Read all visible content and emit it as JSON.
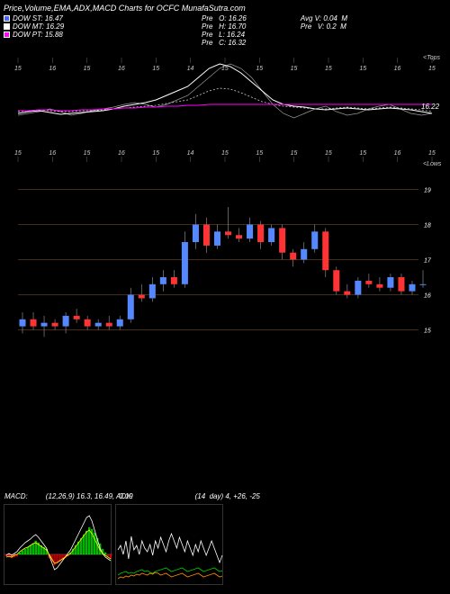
{
  "title": "Price,Volume,EMA,ADX,MACD Charts for OCFC MunafaSutra.com",
  "stats": {
    "dow_st": {
      "label": "DOW ST: 16.47",
      "color": "#4466ff"
    },
    "dow_mt": {
      "label": "DOW MT: 16.29",
      "color": "#ffffff"
    },
    "dow_pt": {
      "label": "DOW PT: 15.88",
      "color": "#ff00ff"
    }
  },
  "mid_block": [
    "Pre   O: 16.26",
    "Pre   H: 16.70",
    "Pre   L: 16.24",
    "Pre   C: 16.32"
  ],
  "right_block": [
    "Avg V: 0.04  M",
    "Pre   V: 0.2  M"
  ],
  "ema_chart": {
    "x_ticks": [
      15,
      16,
      15,
      16,
      15,
      14,
      15,
      15,
      15,
      15,
      15,
      16,
      15
    ],
    "top_right": "<Tops",
    "bot_right": "<Lows",
    "price_tag": "16.22",
    "colors": {
      "line1": "#ffffff",
      "line2": "#cccccc",
      "line3": "#ff00ff",
      "line4": "#999999"
    },
    "line1": [
      70,
      68,
      67,
      69,
      71,
      70,
      69,
      68,
      67,
      65,
      62,
      60,
      58,
      55,
      50,
      45,
      40,
      30,
      20,
      15,
      18,
      25,
      35,
      45,
      55,
      60,
      62,
      63,
      65,
      66,
      65,
      64,
      65,
      66,
      65,
      64,
      65,
      66,
      68,
      70
    ],
    "line2": [
      68,
      67,
      66,
      67,
      68,
      68,
      67,
      67,
      66,
      65,
      64,
      63,
      62,
      61,
      59,
      57,
      55,
      50,
      45,
      42,
      43,
      47,
      52,
      57,
      60,
      62,
      63,
      64,
      65,
      65,
      64,
      63,
      64,
      65,
      64,
      63,
      64,
      65,
      66,
      68
    ],
    "line3": [
      67,
      67,
      66,
      66,
      67,
      67,
      66,
      66,
      65,
      65,
      64,
      64,
      63,
      63,
      62,
      62,
      61,
      61,
      60,
      60,
      60,
      60,
      60,
      60,
      60,
      60,
      60,
      60,
      60,
      60,
      60,
      60,
      60,
      60,
      60,
      60,
      60,
      60,
      60,
      60
    ],
    "line4": [
      72,
      70,
      68,
      65,
      68,
      72,
      70,
      67,
      65,
      63,
      60,
      58,
      60,
      63,
      60,
      55,
      50,
      40,
      30,
      20,
      15,
      20,
      30,
      45,
      60,
      70,
      75,
      70,
      65,
      62,
      68,
      72,
      70,
      65,
      62,
      60,
      65,
      70,
      72,
      70
    ]
  },
  "candle_chart": {
    "y_ticks": [
      19,
      18,
      17,
      16,
      15
    ],
    "y_min": 14.5,
    "y_max": 19.5,
    "candles": [
      {
        "o": 15.1,
        "h": 15.5,
        "l": 14.9,
        "c": 15.3,
        "up": true
      },
      {
        "o": 15.3,
        "h": 15.5,
        "l": 15.0,
        "c": 15.1,
        "up": false
      },
      {
        "o": 15.1,
        "h": 15.4,
        "l": 14.8,
        "c": 15.2,
        "up": true
      },
      {
        "o": 15.2,
        "h": 15.3,
        "l": 15.0,
        "c": 15.1,
        "up": false
      },
      {
        "o": 15.1,
        "h": 15.5,
        "l": 14.9,
        "c": 15.4,
        "up": true
      },
      {
        "o": 15.4,
        "h": 15.6,
        "l": 15.2,
        "c": 15.3,
        "up": false
      },
      {
        "o": 15.3,
        "h": 15.4,
        "l": 15.0,
        "c": 15.1,
        "up": false
      },
      {
        "o": 15.1,
        "h": 15.3,
        "l": 15.0,
        "c": 15.2,
        "up": true
      },
      {
        "o": 15.2,
        "h": 15.4,
        "l": 15.0,
        "c": 15.1,
        "up": false
      },
      {
        "o": 15.1,
        "h": 15.4,
        "l": 15.0,
        "c": 15.3,
        "up": true
      },
      {
        "o": 15.3,
        "h": 16.2,
        "l": 15.2,
        "c": 16.0,
        "up": true
      },
      {
        "o": 16.0,
        "h": 16.3,
        "l": 15.8,
        "c": 15.9,
        "up": false
      },
      {
        "o": 15.9,
        "h": 16.5,
        "l": 15.8,
        "c": 16.3,
        "up": true
      },
      {
        "o": 16.3,
        "h": 16.7,
        "l": 16.1,
        "c": 16.5,
        "up": true
      },
      {
        "o": 16.5,
        "h": 16.7,
        "l": 16.2,
        "c": 16.3,
        "up": false
      },
      {
        "o": 16.3,
        "h": 17.8,
        "l": 16.2,
        "c": 17.5,
        "up": true
      },
      {
        "o": 17.5,
        "h": 18.3,
        "l": 17.3,
        "c": 18.0,
        "up": true
      },
      {
        "o": 18.0,
        "h": 18.2,
        "l": 17.2,
        "c": 17.4,
        "up": false
      },
      {
        "o": 17.4,
        "h": 18.0,
        "l": 17.3,
        "c": 17.8,
        "up": true
      },
      {
        "o": 17.8,
        "h": 18.5,
        "l": 17.6,
        "c": 17.7,
        "up": false
      },
      {
        "o": 17.7,
        "h": 17.9,
        "l": 17.5,
        "c": 17.6,
        "up": false
      },
      {
        "o": 17.6,
        "h": 18.2,
        "l": 17.5,
        "c": 18.0,
        "up": true
      },
      {
        "o": 18.0,
        "h": 18.1,
        "l": 17.3,
        "c": 17.5,
        "up": false
      },
      {
        "o": 17.5,
        "h": 18.0,
        "l": 17.4,
        "c": 17.9,
        "up": true
      },
      {
        "o": 17.9,
        "h": 18.0,
        "l": 17.0,
        "c": 17.2,
        "up": false
      },
      {
        "o": 17.2,
        "h": 17.3,
        "l": 16.8,
        "c": 17.0,
        "up": false
      },
      {
        "o": 17.0,
        "h": 17.5,
        "l": 16.9,
        "c": 17.3,
        "up": true
      },
      {
        "o": 17.3,
        "h": 18.0,
        "l": 17.2,
        "c": 17.8,
        "up": true
      },
      {
        "o": 17.8,
        "h": 17.9,
        "l": 16.5,
        "c": 16.7,
        "up": false
      },
      {
        "o": 16.7,
        "h": 16.8,
        "l": 16.0,
        "c": 16.1,
        "up": false
      },
      {
        "o": 16.1,
        "h": 16.3,
        "l": 15.9,
        "c": 16.0,
        "up": false
      },
      {
        "o": 16.0,
        "h": 16.5,
        "l": 15.9,
        "c": 16.4,
        "up": true
      },
      {
        "o": 16.4,
        "h": 16.6,
        "l": 16.2,
        "c": 16.3,
        "up": false
      },
      {
        "o": 16.3,
        "h": 16.5,
        "l": 16.1,
        "c": 16.2,
        "up": false
      },
      {
        "o": 16.2,
        "h": 16.6,
        "l": 16.1,
        "c": 16.5,
        "up": true
      },
      {
        "o": 16.5,
        "h": 16.6,
        "l": 16.0,
        "c": 16.1,
        "up": false
      },
      {
        "o": 16.1,
        "h": 16.4,
        "l": 16.0,
        "c": 16.3,
        "up": true
      },
      {
        "o": 16.3,
        "h": 16.7,
        "l": 16.2,
        "c": 16.3,
        "up": true
      }
    ],
    "colors": {
      "up": "#5588ff",
      "down": "#ff3333",
      "wick": "#888888"
    }
  },
  "macd": {
    "label": "MACD:         (12,26,9) 16.3, 16.49, -0.19",
    "hist": [
      -2,
      -3,
      -4,
      -3,
      -2,
      2,
      4,
      6,
      8,
      10,
      12,
      15,
      13,
      10,
      8,
      6,
      -4,
      -8,
      -12,
      -10,
      -8,
      -6,
      -4,
      -2,
      2,
      6,
      10,
      14,
      18,
      22,
      26,
      30,
      28,
      24,
      18,
      12,
      6,
      2,
      -2,
      -4
    ],
    "signal": [
      58,
      57,
      58,
      56,
      55,
      52,
      50,
      48,
      47,
      45,
      43,
      42,
      44,
      46,
      48,
      50,
      55,
      60,
      65,
      64,
      62,
      60,
      58,
      56,
      54,
      50,
      46,
      42,
      38,
      34,
      30,
      28,
      32,
      38,
      44,
      50,
      54,
      56,
      58,
      60
    ],
    "macd_line": [
      56,
      54,
      56,
      54,
      52,
      48,
      45,
      42,
      40,
      38,
      35,
      33,
      36,
      40,
      44,
      48,
      56,
      64,
      72,
      70,
      66,
      62,
      58,
      54,
      50,
      44,
      38,
      32,
      26,
      20,
      14,
      12,
      18,
      28,
      38,
      48,
      54,
      58,
      60,
      62
    ],
    "colors": {
      "hist_pos": "#00ff00",
      "hist_neg": "#ff0000",
      "signal": "#ffff00",
      "macd": "#ffffff",
      "mid": "#888888"
    }
  },
  "adx": {
    "label": "ADX:                               (14  day) 4, +26, -25",
    "adx_line": [
      50,
      45,
      55,
      40,
      60,
      35,
      50,
      45,
      55,
      40,
      48,
      52,
      44,
      56,
      40,
      48,
      36,
      44,
      52,
      40,
      32,
      40,
      48,
      36,
      44,
      52,
      40,
      48,
      56,
      44,
      52,
      40,
      48,
      56,
      48,
      40,
      48,
      56,
      64,
      56
    ],
    "plus_di": [
      78,
      76,
      75,
      74,
      76,
      75,
      76,
      74,
      73,
      72,
      74,
      73,
      75,
      76,
      74,
      73,
      72,
      71,
      70,
      72,
      74,
      73,
      72,
      71,
      70,
      72,
      74,
      73,
      72,
      71,
      70,
      72,
      74,
      73,
      72,
      71,
      70,
      72,
      74,
      73
    ],
    "minus_di": [
      82,
      80,
      81,
      79,
      80,
      78,
      79,
      77,
      78,
      76,
      77,
      78,
      76,
      77,
      75,
      76,
      78,
      77,
      76,
      78,
      80,
      79,
      78,
      77,
      76,
      78,
      80,
      79,
      78,
      77,
      76,
      78,
      80,
      79,
      78,
      77,
      76,
      78,
      80,
      79
    ],
    "colors": {
      "adx": "#ffffff",
      "plus": "#00cc00",
      "minus": "#ff8800"
    }
  }
}
